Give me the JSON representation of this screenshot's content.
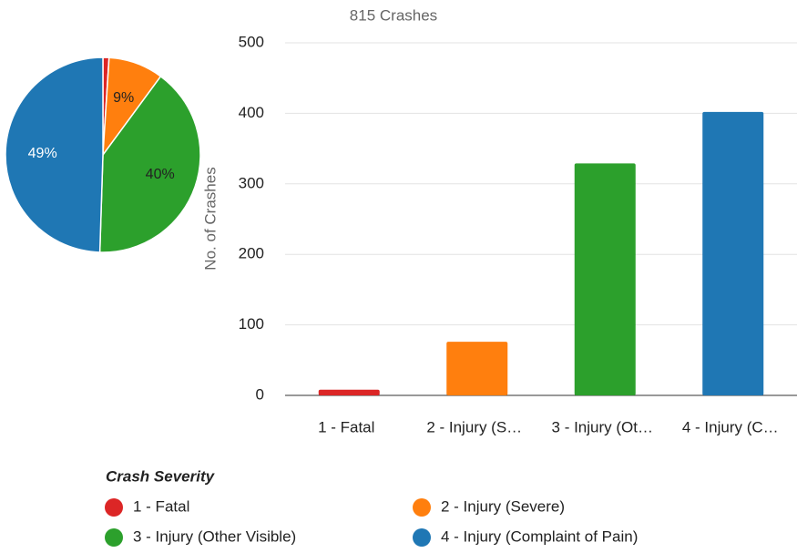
{
  "chart_data": [
    {
      "type": "pie",
      "categories": [
        "1 - Fatal",
        "2 - Injury (Severe)",
        "3 - Injury (Other Visible)",
        "4 - Injury (Complaint of Pain)"
      ],
      "values": [
        1,
        9,
        40,
        49
      ],
      "value_labels": [
        null,
        "9%",
        "40%",
        "49%"
      ],
      "colors": [
        "#dc2626",
        "#ff7f0e",
        "#2ca02c",
        "#1f77b4"
      ]
    },
    {
      "type": "bar",
      "title": "815 Crashes",
      "y_label": "No. of Crashes",
      "categories": [
        "1 - Fatal",
        "2 - Injury (S…",
        "3 - Injury (Ot…",
        "4 - Injury (C…"
      ],
      "values": [
        8,
        76,
        329,
        402
      ],
      "colors": [
        "#dc2626",
        "#ff7f0e",
        "#2ca02c",
        "#1f77b4"
      ],
      "ylim": [
        0,
        500
      ],
      "yticks": [
        0,
        100,
        200,
        300,
        400,
        500
      ],
      "grid": true
    }
  ],
  "legend": {
    "title": "Crash Severity",
    "items": [
      {
        "name": "1 - Fatal",
        "color": "#dc2626"
      },
      {
        "name": "2 - Injury (Severe)",
        "color": "#ff7f0e"
      },
      {
        "name": "3 - Injury (Other Visible)",
        "color": "#2ca02c"
      },
      {
        "name": "4 - Injury (Complaint of Pain)",
        "color": "#1f77b4"
      }
    ]
  }
}
